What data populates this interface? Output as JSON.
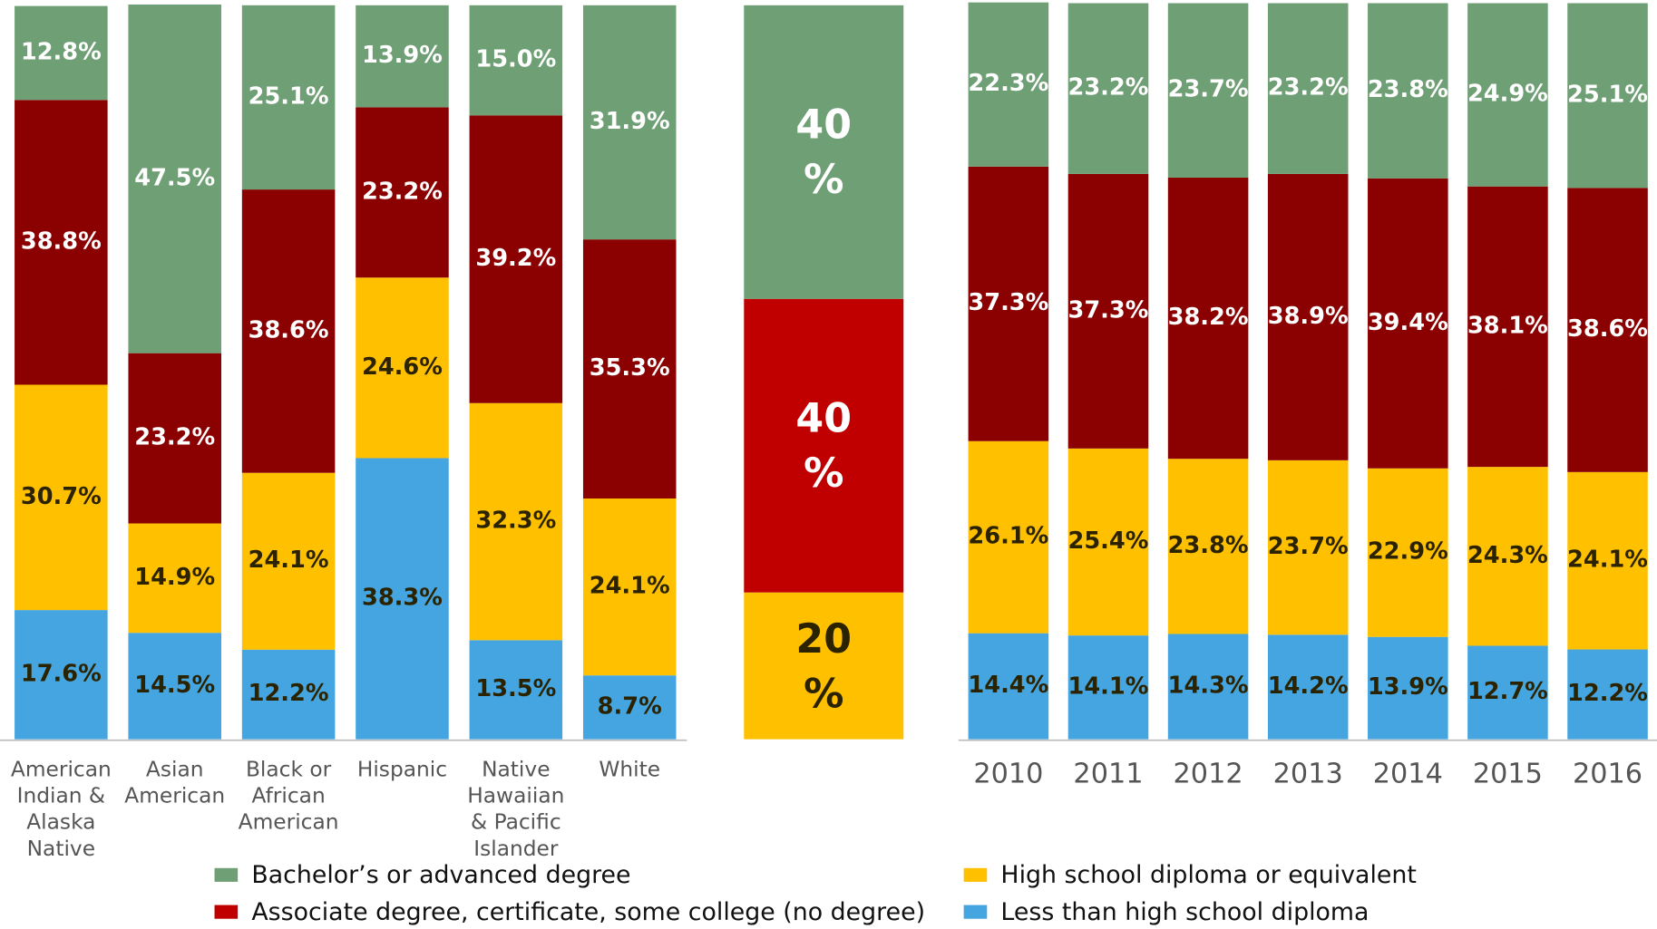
{
  "chart_data": [
    {
      "type": "stacked_bar",
      "categories": [
        "American Indian & Alaska Native",
        "Asian American",
        "Black or African American",
        "Hispanic",
        "Native Hawaiian & Pacific Islander",
        "White"
      ],
      "ylim": [
        0,
        100
      ],
      "series": [
        {
          "color": "#45a5e0",
          "values": [
            17.6,
            14.5,
            12.2,
            38.3,
            13.5,
            8.7
          ],
          "value_labels": [
            "17.6%",
            "14.5%",
            "12.2%",
            "38.3%",
            "13.5%",
            "8.7%"
          ]
        },
        {
          "color": "#ffc000",
          "values": [
            30.7,
            14.9,
            24.1,
            24.6,
            32.3,
            24.1
          ],
          "value_labels": [
            "30.7%",
            "14.9%",
            "24.1%",
            "24.6%",
            "32.3%",
            "24.1%"
          ]
        },
        {
          "color": "#8b0000",
          "values": [
            38.8,
            23.2,
            38.6,
            23.2,
            39.2,
            35.3
          ],
          "value_labels": [
            "38.8%",
            "23.2%",
            "38.6%",
            "23.2%",
            "39.2%",
            "35.3%"
          ]
        },
        {
          "color": "#6f9f75",
          "values": [
            12.8,
            47.5,
            25.1,
            13.9,
            15.0,
            31.9
          ],
          "value_labels": [
            "12.8%",
            "47.5%",
            "25.1%",
            "13.9%",
            "15.0%",
            "31.9%"
          ]
        }
      ]
    },
    {
      "type": "stacked_bar",
      "ylim": [
        0,
        100
      ],
      "series": [
        {
          "color": "#ffc000",
          "values": [
            20
          ],
          "value_labels": [
            "20 %"
          ]
        },
        {
          "color": "#c00000",
          "values": [
            40
          ],
          "value_labels": [
            "40 %"
          ]
        },
        {
          "color": "#6f9f75",
          "values": [
            40
          ],
          "value_labels": [
            "40 %"
          ]
        }
      ]
    },
    {
      "type": "stacked_bar",
      "categories": [
        "2010",
        "2011",
        "2012",
        "2013",
        "2014",
        "2015",
        "2016"
      ],
      "ylim": [
        0,
        100
      ],
      "series": [
        {
          "color": "#45a5e0",
          "values": [
            14.4,
            14.1,
            14.3,
            14.2,
            13.9,
            12.7,
            12.2
          ],
          "value_labels": [
            "14.4%",
            "14.1%",
            "14.3%",
            "14.2%",
            "13.9%",
            "12.7%",
            "12.2%"
          ]
        },
        {
          "color": "#ffc000",
          "values": [
            26.1,
            25.4,
            23.8,
            23.7,
            22.9,
            24.3,
            24.1
          ],
          "value_labels": [
            "26.1%",
            "25.4%",
            "23.8%",
            "23.7%",
            "22.9%",
            "24.3%",
            "24.1%"
          ]
        },
        {
          "color": "#8b0000",
          "values": [
            37.3,
            37.3,
            38.2,
            38.9,
            39.4,
            38.1,
            38.6
          ],
          "value_labels": [
            "37.3%",
            "37.3%",
            "38.2%",
            "38.9%",
            "39.4%",
            "38.1%",
            "38.6%"
          ]
        },
        {
          "color": "#6f9f75",
          "values": [
            22.3,
            23.2,
            23.7,
            23.2,
            23.8,
            24.9,
            25.1
          ],
          "value_labels": [
            "22.3%",
            "23.2%",
            "23.7%",
            "23.2%",
            "23.8%",
            "24.9%",
            "25.1%"
          ]
        }
      ]
    }
  ],
  "legend": [
    {
      "name": "Bachelor’s or advanced degree",
      "color": "#6f9f75"
    },
    {
      "name": "Associate degree, certificate, some college (no degree)",
      "color": "#c00000"
    },
    {
      "name": "High school diploma or equivalent",
      "color": "#ffc000"
    },
    {
      "name": "Less than high school diploma",
      "color": "#45a5e0"
    }
  ]
}
